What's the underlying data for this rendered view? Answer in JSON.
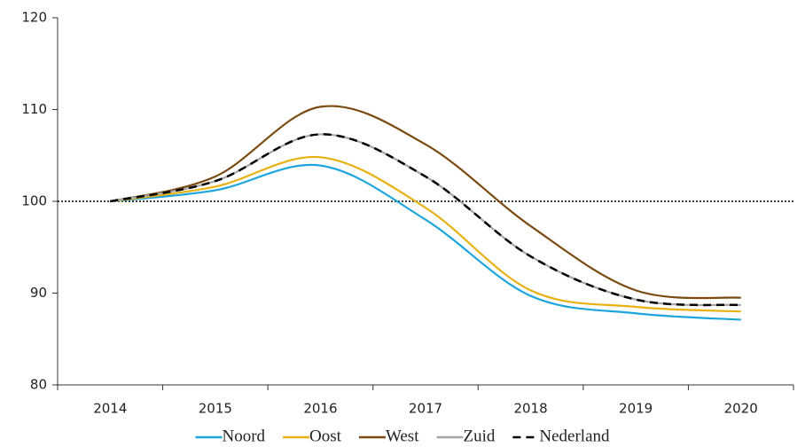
{
  "chart_data": {
    "type": "line",
    "categories": [
      "2014",
      "2015",
      "2016",
      "2017",
      "2018",
      "2019",
      "2020"
    ],
    "series": [
      {
        "name": "Noord",
        "color": "#1ea5de",
        "values": [
          100,
          101.2,
          103.9,
          98.0,
          89.7,
          87.8,
          87.1
        ]
      },
      {
        "name": "Oost",
        "color": "#e8b010",
        "values": [
          100,
          101.6,
          104.8,
          99.3,
          90.3,
          88.5,
          88.0
        ]
      },
      {
        "name": "West",
        "color": "#7a4a10",
        "values": [
          100,
          102.7,
          110.3,
          106.2,
          97.3,
          90.3,
          89.5
        ]
      },
      {
        "name": "Zuid",
        "color": "#a6a6a6",
        "values": [
          100,
          102.2,
          107.3,
          102.7,
          94.0,
          89.3,
          88.7
        ]
      },
      {
        "name": "Nederland",
        "color": "#000000",
        "dash": true,
        "values": [
          100,
          102.2,
          107.3,
          102.7,
          94.0,
          89.3,
          88.7
        ]
      }
    ],
    "ylim": [
      80,
      120
    ],
    "yticks": [
      80,
      90,
      100,
      110,
      120
    ],
    "reference_line": 100,
    "smooth": true,
    "legend": "bottom"
  }
}
